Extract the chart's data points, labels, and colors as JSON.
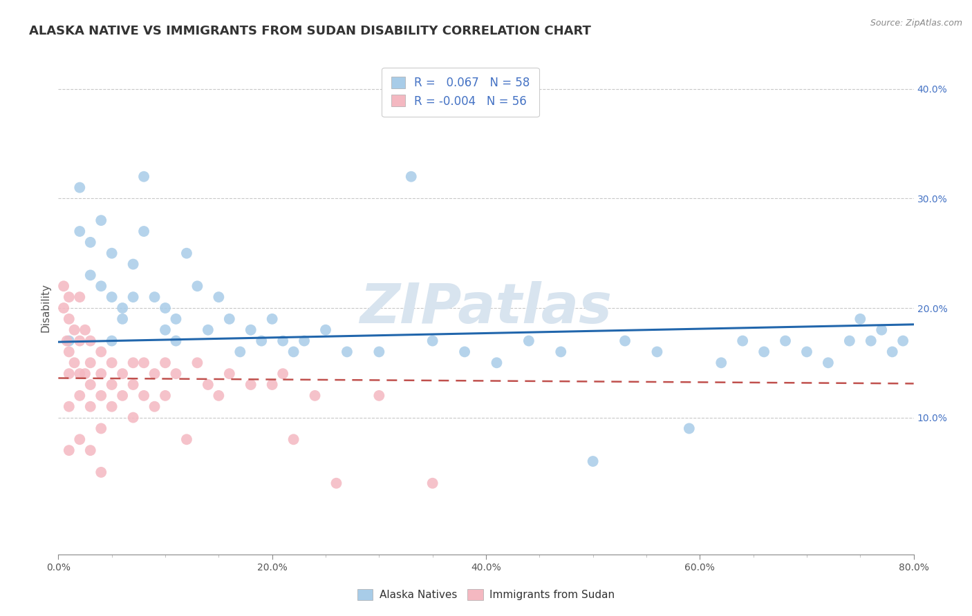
{
  "title": "ALASKA NATIVE VS IMMIGRANTS FROM SUDAN DISABILITY CORRELATION CHART",
  "source_text": "Source: ZipAtlas.com",
  "ylabel": "Disability",
  "xlim": [
    0.0,
    0.8
  ],
  "ylim_low": -0.025,
  "ylim_high": 0.425,
  "xtick_labels": [
    "0.0%",
    "",
    "",
    "",
    "20.0%",
    "",
    "",
    "",
    "40.0%",
    "",
    "",
    "",
    "60.0%",
    "",
    "",
    "",
    "80.0%"
  ],
  "xtick_vals": [
    0.0,
    0.05,
    0.1,
    0.15,
    0.2,
    0.25,
    0.3,
    0.35,
    0.4,
    0.45,
    0.5,
    0.55,
    0.6,
    0.65,
    0.7,
    0.75,
    0.8
  ],
  "ytick_labels": [
    "10.0%",
    "20.0%",
    "30.0%",
    "40.0%"
  ],
  "ytick_vals": [
    0.1,
    0.2,
    0.3,
    0.4
  ],
  "blue_R": "0.067",
  "blue_N": "58",
  "pink_R": "-0.004",
  "pink_N": "56",
  "blue_color": "#a8cce8",
  "pink_color": "#f4b8c1",
  "blue_line_color": "#2166ac",
  "pink_line_color": "#c0504d",
  "watermark": "ZIPatlas",
  "legend1_label": "Alaska Natives",
  "legend2_label": "Immigrants from Sudan",
  "blue_x": [
    0.01,
    0.02,
    0.02,
    0.03,
    0.03,
    0.04,
    0.04,
    0.05,
    0.05,
    0.05,
    0.06,
    0.06,
    0.07,
    0.07,
    0.08,
    0.08,
    0.09,
    0.1,
    0.1,
    0.11,
    0.11,
    0.12,
    0.13,
    0.14,
    0.15,
    0.16,
    0.17,
    0.18,
    0.19,
    0.2,
    0.21,
    0.22,
    0.23,
    0.25,
    0.27,
    0.3,
    0.33,
    0.35,
    0.38,
    0.41,
    0.44,
    0.47,
    0.5,
    0.53,
    0.56,
    0.59,
    0.62,
    0.64,
    0.66,
    0.68,
    0.7,
    0.72,
    0.74,
    0.75,
    0.76,
    0.77,
    0.78,
    0.79
  ],
  "blue_y": [
    0.17,
    0.31,
    0.27,
    0.26,
    0.23,
    0.22,
    0.28,
    0.21,
    0.25,
    0.17,
    0.2,
    0.19,
    0.21,
    0.24,
    0.32,
    0.27,
    0.21,
    0.18,
    0.2,
    0.17,
    0.19,
    0.25,
    0.22,
    0.18,
    0.21,
    0.19,
    0.16,
    0.18,
    0.17,
    0.19,
    0.17,
    0.16,
    0.17,
    0.18,
    0.16,
    0.16,
    0.32,
    0.17,
    0.16,
    0.15,
    0.17,
    0.16,
    0.06,
    0.17,
    0.16,
    0.09,
    0.15,
    0.17,
    0.16,
    0.17,
    0.16,
    0.15,
    0.17,
    0.19,
    0.17,
    0.18,
    0.16,
    0.17
  ],
  "pink_x": [
    0.005,
    0.005,
    0.008,
    0.01,
    0.01,
    0.01,
    0.01,
    0.01,
    0.01,
    0.015,
    0.015,
    0.02,
    0.02,
    0.02,
    0.02,
    0.02,
    0.025,
    0.025,
    0.03,
    0.03,
    0.03,
    0.03,
    0.03,
    0.04,
    0.04,
    0.04,
    0.04,
    0.04,
    0.05,
    0.05,
    0.05,
    0.06,
    0.06,
    0.07,
    0.07,
    0.07,
    0.08,
    0.08,
    0.09,
    0.09,
    0.1,
    0.1,
    0.11,
    0.12,
    0.13,
    0.14,
    0.15,
    0.16,
    0.18,
    0.2,
    0.21,
    0.22,
    0.24,
    0.26,
    0.3,
    0.35
  ],
  "pink_y": [
    0.22,
    0.2,
    0.17,
    0.21,
    0.19,
    0.16,
    0.14,
    0.11,
    0.07,
    0.18,
    0.15,
    0.21,
    0.17,
    0.14,
    0.12,
    0.08,
    0.18,
    0.14,
    0.17,
    0.15,
    0.13,
    0.11,
    0.07,
    0.16,
    0.14,
    0.12,
    0.09,
    0.05,
    0.15,
    0.13,
    0.11,
    0.14,
    0.12,
    0.15,
    0.13,
    0.1,
    0.15,
    0.12,
    0.14,
    0.11,
    0.15,
    0.12,
    0.14,
    0.08,
    0.15,
    0.13,
    0.12,
    0.14,
    0.13,
    0.13,
    0.14,
    0.08,
    0.12,
    0.04,
    0.12,
    0.04
  ],
  "blue_line_x0": 0.0,
  "blue_line_x1": 0.8,
  "blue_line_y0": 0.169,
  "blue_line_y1": 0.185,
  "pink_line_x0": 0.0,
  "pink_line_x1": 0.8,
  "pink_line_y0": 0.136,
  "pink_line_y1": 0.131
}
